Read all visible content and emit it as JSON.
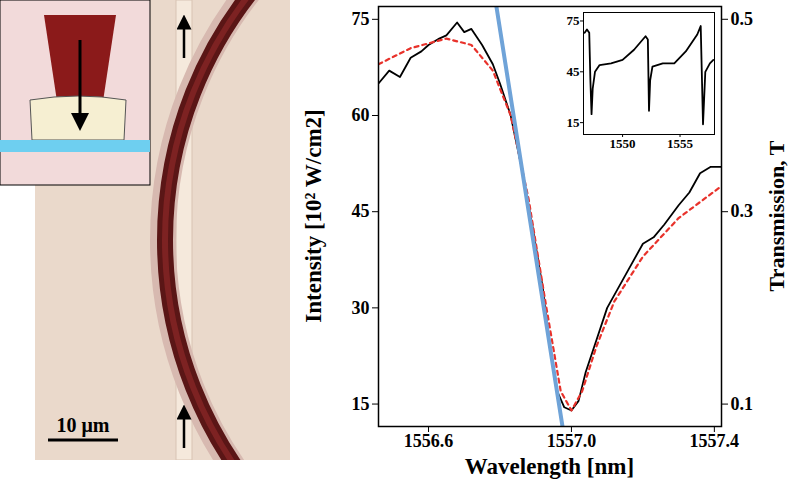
{
  "chart_data": [
    {
      "type": "line",
      "x_label": "Wavelength [nm]",
      "y_label": "Intensity [10² W/cm2]",
      "y2_label": "Transmission, T",
      "xlim": [
        1556.46,
        1557.42
      ],
      "xticks": [
        1556.6,
        {
          "value": 1557,
          "label": "1557.0"
        },
        1557.4
      ],
      "ylim": [
        11.5,
        77
      ],
      "yticks": [
        15,
        30,
        45,
        60,
        75
      ],
      "y2lim": [
        0.0767,
        0.5133
      ],
      "y2ticks": [
        0.1,
        0.3,
        0.5
      ],
      "series": [
        {
          "color": "#000000",
          "line_style": "solid",
          "x": [
            1556.46,
            1556.49,
            1556.52,
            1556.55,
            1556.58,
            1556.6,
            1556.63,
            1556.65,
            1556.68,
            1556.7,
            1556.72,
            1556.75,
            1556.78,
            1556.8,
            1556.83,
            1556.86,
            1556.89,
            1556.92,
            1556.94,
            1556.96,
            1556.98,
            1557.0,
            1557.02,
            1557.04,
            1557.07,
            1557.1,
            1557.13,
            1557.16,
            1557.2,
            1557.23,
            1557.26,
            1557.3,
            1557.33,
            1557.36,
            1557.39,
            1557.42
          ],
          "values": [
            65,
            67,
            66,
            69,
            70,
            71,
            72,
            72.5,
            74.5,
            73,
            73.5,
            71,
            68,
            65,
            60,
            52,
            43,
            33,
            24,
            17,
            14.5,
            14,
            15.5,
            20,
            25,
            30,
            33,
            36,
            40,
            41,
            43,
            46,
            48,
            51,
            52,
            52
          ]
        },
        {
          "color": "#e8322b",
          "line_style": "dashed",
          "x": [
            1556.46,
            1556.55,
            1556.65,
            1556.72,
            1556.78,
            1556.83,
            1556.88,
            1556.93,
            1556.97,
            1557.0,
            1557.03,
            1557.07,
            1557.12,
            1557.2,
            1557.3,
            1557.42
          ],
          "values": [
            68,
            70.5,
            72,
            71,
            67,
            60,
            47,
            30,
            17,
            14,
            17,
            24,
            31,
            38,
            44,
            49
          ]
        },
        {
          "color": "#6fa3d8",
          "line_style": "solid",
          "x": [
            1556.79,
            1556.975
          ],
          "values": [
            77,
            11.5
          ]
        }
      ]
    },
    {
      "type": "line",
      "xlim": [
        1546.6,
        1558.0
      ],
      "xticks": [
        1550,
        1555
      ],
      "ylim": [
        8,
        80
      ],
      "yticks": [
        15,
        45,
        75
      ],
      "series": [
        {
          "color": "#000000",
          "line_style": "solid",
          "x": [
            1546.7,
            1546.9,
            1547.1,
            1547.2,
            1547.3,
            1547.4,
            1547.6,
            1548.0,
            1549.0,
            1550.0,
            1551.0,
            1552.0,
            1552.2,
            1552.3,
            1552.4,
            1552.6,
            1553.5,
            1554.5,
            1555.5,
            1556.5,
            1556.8,
            1557.0,
            1557.2,
            1557.6,
            1557.9
          ],
          "values": [
            68,
            70,
            68,
            40,
            20,
            35,
            45,
            49,
            50,
            52,
            58,
            66,
            64,
            22,
            40,
            48,
            50,
            50,
            57,
            67,
            72,
            14,
            45,
            50,
            52
          ]
        }
      ]
    }
  ],
  "micrograph": {
    "scale_bar": "10 μm"
  }
}
